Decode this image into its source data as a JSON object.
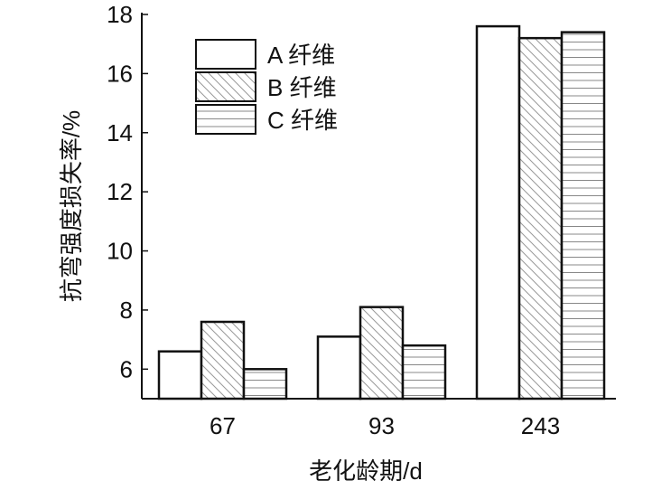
{
  "chart_data": {
    "type": "bar",
    "title": "",
    "xlabel": "老化龄期/d",
    "ylabel": "抗弯强度损失率/%",
    "categories": [
      "67",
      "93",
      "243"
    ],
    "ylim": [
      5,
      18
    ],
    "yticks": [
      6,
      8,
      10,
      12,
      14,
      16,
      18
    ],
    "grid": false,
    "legend_position": "top-left",
    "series": [
      {
        "name": "A 纤维",
        "pattern": "none",
        "values": [
          6.6,
          7.1,
          17.6
        ]
      },
      {
        "name": "B 纤维",
        "pattern": "diagonal-hatch",
        "values": [
          7.6,
          8.1,
          17.2
        ]
      },
      {
        "name": "C 纤维",
        "pattern": "horizontal-lines",
        "values": [
          6.0,
          6.8,
          17.4
        ]
      }
    ],
    "colors": {
      "stroke": "#111111",
      "fill": "#ffffff",
      "hatch": "#999999"
    }
  }
}
